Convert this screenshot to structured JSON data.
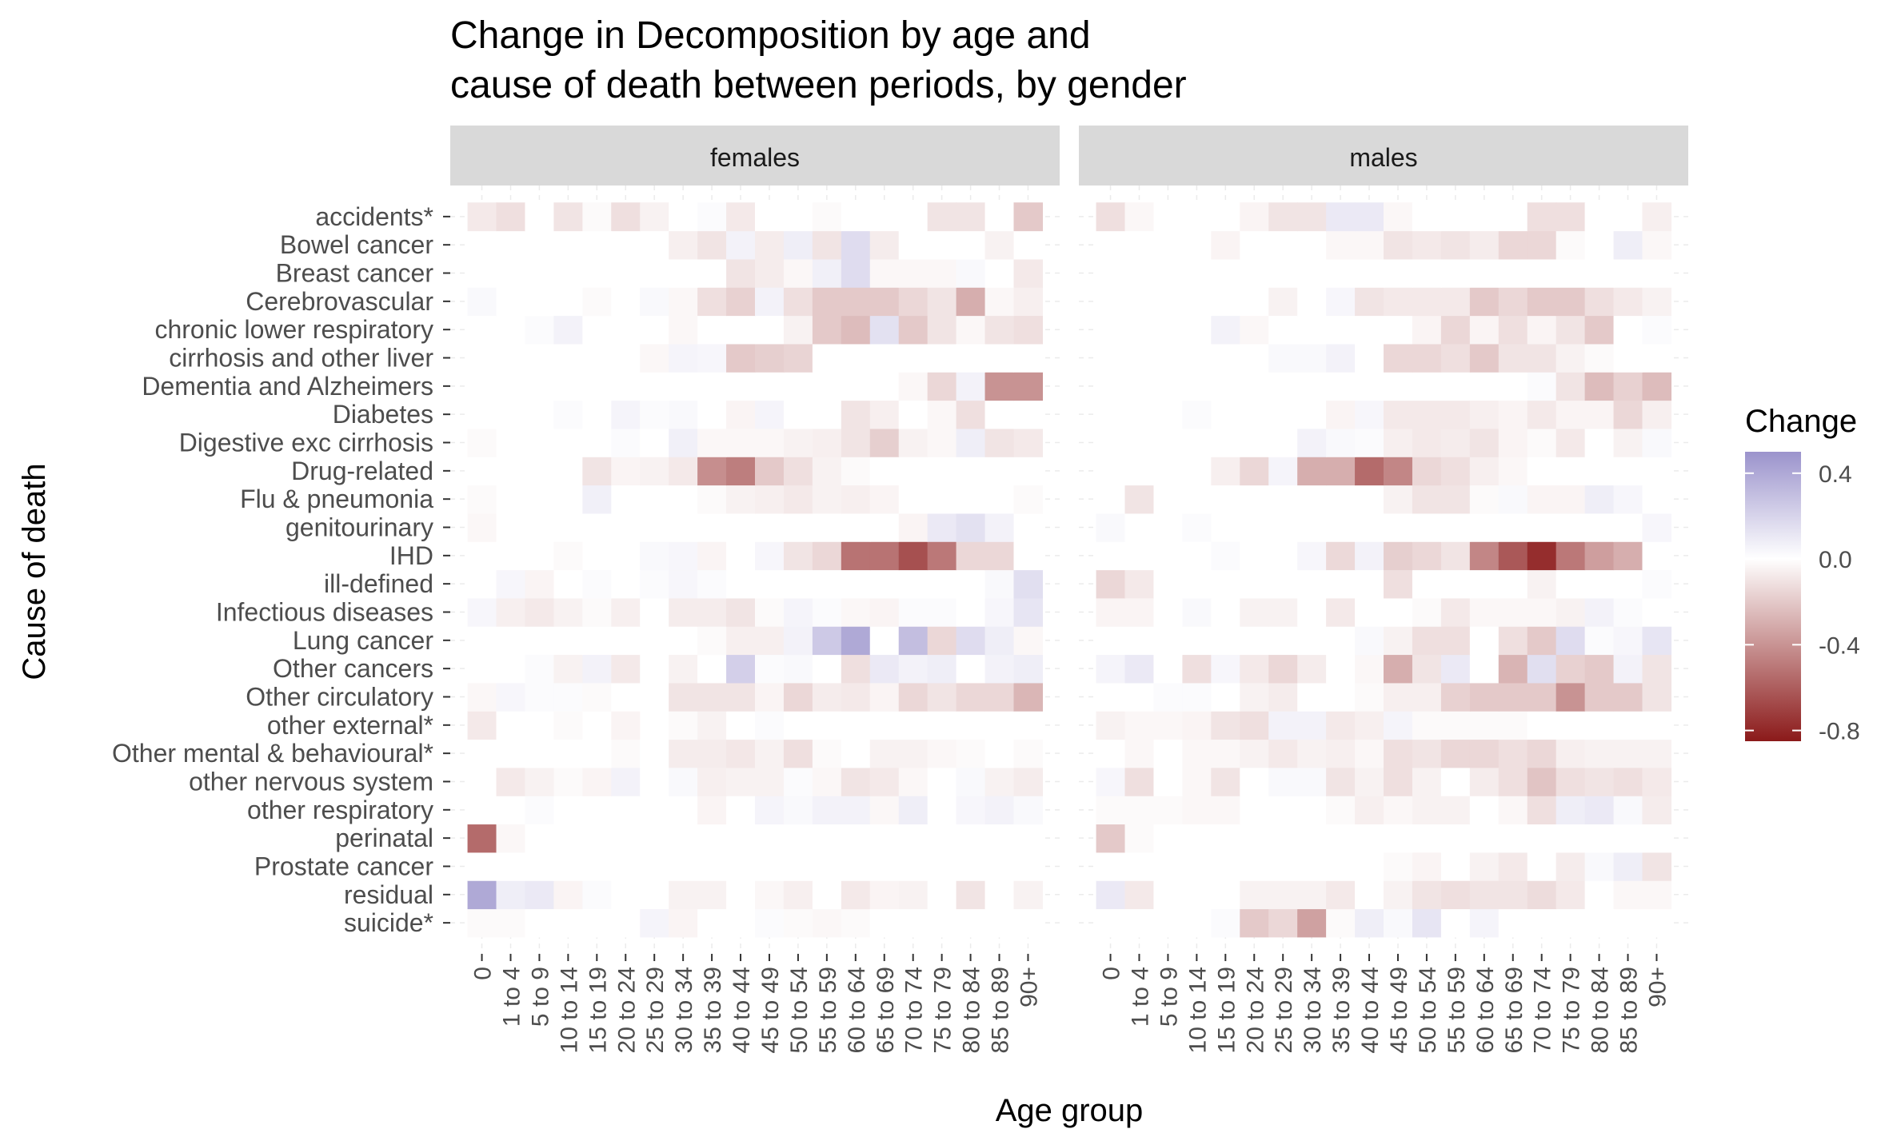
{
  "chart_data": {
    "type": "heatmap",
    "title": "Change in Decomposition by age and cause of death between periods, by gender",
    "title_lines": [
      "Change in Decomposition by age and",
      "cause of death between periods, by gender"
    ],
    "xlabel": "Age group",
    "ylabel": "Cause of death",
    "facets": [
      "females",
      "males"
    ],
    "x_categories": [
      "0",
      "1 to 4",
      "5 to 9",
      "10 to 14",
      "15 to 19",
      "20 to 24",
      "25 to 29",
      "30 to 34",
      "35 to 39",
      "40 to 44",
      "45 to 49",
      "50 to 54",
      "55 to 59",
      "60 to 64",
      "65 to 69",
      "70 to 74",
      "75 to 79",
      "80 to 84",
      "85 to 89",
      "90+"
    ],
    "y_categories": [
      "suicide*",
      "residual",
      "Prostate cancer",
      "perinatal",
      "other respiratory",
      "other nervous system",
      "Other mental & behavioural*",
      "other external*",
      "Other circulatory",
      "Other cancers",
      "Lung cancer",
      "Infectious diseases",
      "ill-defined",
      "IHD",
      "genitourinary",
      "Flu & pneumonia",
      "Drug-related",
      "Digestive exc cirrhosis",
      "Diabetes",
      "Dementia and Alzheimers",
      "cirrhosis and other liver",
      "chronic lower respiratory",
      "Cerebrovascular",
      "Breast cancer",
      "Bowel cancer",
      "accidents*"
    ],
    "legend": {
      "title": "Change",
      "breaks": [
        0.4,
        0.0,
        -0.4,
        -0.8
      ],
      "break_labels": [
        "0.4",
        "0.0",
        "-0.4",
        "-0.8"
      ],
      "limits": [
        -0.85,
        0.5
      ],
      "colors": {
        "high": "#9b93cc",
        "mid": "#ffffff",
        "low": "#8b1a1a"
      },
      "position": "right"
    },
    "values": {
      "females": [
        [
          -0.02,
          -0.02,
          0,
          0,
          0,
          0,
          0.05,
          -0.04,
          0,
          0,
          0.02,
          -0.02,
          -0.03,
          -0.02,
          0,
          0,
          0,
          0,
          0,
          0
        ],
        [
          0.4,
          0.08,
          0.1,
          -0.04,
          0.02,
          0,
          0,
          -0.05,
          -0.05,
          0,
          -0.03,
          -0.06,
          0,
          -0.08,
          -0.04,
          -0.05,
          0,
          -0.1,
          0,
          -0.05
        ],
        [
          0,
          0,
          0,
          0,
          0,
          0,
          0,
          0,
          0,
          0,
          0,
          0,
          0,
          0,
          0,
          0,
          0,
          0,
          0,
          0
        ],
        [
          -0.55,
          -0.03,
          0,
          0,
          0,
          0,
          0,
          0,
          0,
          0,
          0,
          0,
          0,
          0,
          0,
          0,
          0,
          0,
          0,
          0
        ],
        [
          0,
          0,
          0.02,
          0,
          0,
          0,
          0,
          0,
          -0.04,
          0,
          0.05,
          0.03,
          0.06,
          0.06,
          -0.03,
          0.08,
          0,
          0.04,
          0.06,
          0.03
        ],
        [
          0,
          -0.08,
          -0.05,
          -0.02,
          -0.04,
          0.06,
          0,
          0.03,
          -0.06,
          -0.05,
          -0.05,
          0.02,
          -0.03,
          -0.1,
          -0.08,
          -0.03,
          0,
          0.03,
          -0.05,
          -0.07
        ],
        [
          0,
          0,
          0,
          0,
          0,
          -0.02,
          0,
          -0.07,
          -0.07,
          -0.09,
          -0.05,
          -0.12,
          -0.02,
          0,
          -0.05,
          -0.05,
          -0.03,
          -0.02,
          0,
          -0.02
        ],
        [
          -0.08,
          0,
          0,
          -0.02,
          0,
          -0.04,
          0,
          -0.02,
          -0.05,
          0,
          0.02,
          0,
          0,
          0,
          0,
          0,
          0,
          0,
          0,
          0
        ],
        [
          -0.03,
          0.04,
          0.02,
          0.02,
          -0.02,
          0,
          0,
          -0.1,
          -0.1,
          -0.1,
          -0.04,
          -0.15,
          -0.07,
          -0.08,
          -0.04,
          -0.15,
          -0.1,
          -0.15,
          -0.15,
          -0.27
        ],
        [
          0,
          0,
          0.02,
          -0.05,
          0.06,
          -0.08,
          0,
          -0.05,
          0,
          0.22,
          0.02,
          0.03,
          0,
          -0.12,
          0.1,
          0.06,
          0.08,
          0,
          0.06,
          0.08
        ],
        [
          0,
          0,
          0,
          0,
          0,
          0,
          0,
          0,
          -0.02,
          -0.06,
          -0.06,
          0.06,
          0.25,
          0.4,
          0,
          0.3,
          -0.15,
          0.16,
          0.08,
          -0.03
        ],
        [
          0.04,
          -0.06,
          -0.08,
          -0.05,
          -0.02,
          -0.06,
          0,
          -0.07,
          -0.07,
          -0.1,
          -0.02,
          0.05,
          0.02,
          -0.03,
          -0.04,
          0.02,
          0.02,
          0,
          0.04,
          0.12
        ],
        [
          0,
          0.04,
          -0.04,
          0,
          0.02,
          0,
          0.02,
          0.04,
          0.02,
          0,
          0,
          0,
          0,
          0,
          0,
          0,
          0,
          0,
          0.03,
          0.15
        ],
        [
          0,
          0,
          0,
          -0.02,
          0,
          0,
          0.03,
          0.04,
          -0.04,
          0,
          0.04,
          -0.1,
          -0.15,
          -0.52,
          -0.52,
          -0.65,
          -0.5,
          -0.15,
          -0.15,
          0
        ],
        [
          -0.03,
          0,
          0,
          0,
          0,
          0,
          0,
          0,
          0,
          0,
          0,
          0,
          0,
          0,
          0,
          -0.04,
          0.1,
          0.14,
          0.06,
          0
        ],
        [
          -0.02,
          0,
          0,
          0,
          0.07,
          0,
          0,
          0,
          -0.02,
          -0.05,
          -0.06,
          -0.08,
          -0.05,
          -0.06,
          -0.04,
          0,
          0,
          0,
          0,
          -0.02
        ],
        [
          0,
          0,
          0,
          0,
          -0.1,
          -0.04,
          -0.05,
          -0.08,
          -0.42,
          -0.48,
          -0.2,
          -0.12,
          -0.05,
          -0.02,
          0,
          0,
          0,
          0,
          0,
          0
        ],
        [
          -0.02,
          0,
          0,
          0,
          0,
          0.02,
          0,
          0.07,
          -0.03,
          -0.03,
          -0.03,
          -0.05,
          -0.06,
          -0.1,
          -0.18,
          -0.05,
          -0.03,
          0.08,
          -0.1,
          -0.08
        ],
        [
          0,
          0,
          0,
          0.02,
          0,
          0.05,
          0.02,
          0.03,
          0,
          -0.04,
          0.05,
          0,
          0,
          -0.1,
          -0.06,
          0,
          -0.03,
          -0.12,
          0,
          0
        ],
        [
          0,
          0,
          0,
          0,
          0,
          0,
          0,
          0,
          0,
          0,
          0,
          0,
          0,
          0,
          0,
          -0.03,
          -0.15,
          0.06,
          -0.4,
          -0.4
        ],
        [
          0,
          0,
          0,
          0,
          0,
          0,
          -0.03,
          0.05,
          0.04,
          -0.2,
          -0.18,
          -0.16,
          0,
          0,
          0,
          0,
          0,
          0,
          0,
          0
        ],
        [
          0,
          0,
          0.02,
          0.06,
          0,
          0,
          0,
          -0.03,
          0,
          0,
          0,
          -0.05,
          -0.2,
          -0.25,
          0.14,
          -0.2,
          -0.1,
          -0.03,
          -0.1,
          -0.12
        ],
        [
          0.03,
          0,
          0,
          0,
          -0.02,
          0,
          0.03,
          -0.03,
          -0.12,
          -0.17,
          0.06,
          -0.12,
          -0.2,
          -0.2,
          -0.2,
          -0.15,
          -0.1,
          -0.3,
          -0.03,
          -0.06
        ],
        [
          0,
          0,
          0,
          0,
          0,
          0,
          0,
          0,
          0,
          -0.1,
          -0.07,
          -0.03,
          0.07,
          0.16,
          -0.03,
          -0.03,
          -0.03,
          0.03,
          0,
          -0.08
        ],
        [
          0,
          0,
          0,
          0,
          0,
          0,
          0,
          -0.06,
          -0.1,
          0.06,
          -0.07,
          0.08,
          -0.1,
          0.16,
          -0.07,
          0,
          0,
          0,
          -0.05,
          0
        ],
        [
          -0.08,
          -0.12,
          0,
          -0.1,
          -0.02,
          -0.12,
          -0.05,
          0,
          0.02,
          -0.08,
          0,
          0,
          -0.02,
          0,
          0,
          0,
          -0.1,
          -0.1,
          0,
          -0.2
        ]
      ],
      "males": [
        [
          0,
          0,
          0,
          0,
          0.02,
          -0.2,
          -0.15,
          -0.35,
          -0.02,
          0.08,
          0.03,
          0.12,
          0,
          0.05,
          0,
          0,
          0,
          0,
          0,
          0
        ],
        [
          0.1,
          -0.08,
          0,
          0,
          0,
          -0.05,
          -0.05,
          -0.05,
          -0.08,
          0,
          -0.05,
          -0.1,
          -0.12,
          -0.1,
          -0.1,
          -0.13,
          -0.08,
          0,
          -0.03,
          -0.03
        ],
        [
          0,
          0,
          0,
          0,
          0,
          0,
          0,
          0,
          0,
          0,
          -0.02,
          -0.04,
          0,
          -0.05,
          -0.08,
          0,
          -0.07,
          0.03,
          0.08,
          -0.1
        ],
        [
          -0.2,
          -0.02,
          0,
          0,
          0,
          0,
          0,
          0,
          0,
          0,
          0,
          0,
          0,
          0,
          0,
          0,
          0,
          0,
          0,
          0
        ],
        [
          -0.02,
          -0.02,
          -0.02,
          -0.03,
          -0.03,
          0,
          0,
          0,
          -0.02,
          -0.06,
          -0.03,
          -0.05,
          -0.05,
          0,
          -0.03,
          -0.12,
          0.08,
          0.1,
          0.03,
          -0.07
        ],
        [
          0.04,
          -0.12,
          0,
          -0.03,
          -0.1,
          0,
          0.03,
          0.03,
          -0.1,
          -0.05,
          -0.12,
          -0.05,
          0,
          -0.07,
          -0.12,
          -0.22,
          -0.12,
          -0.1,
          -0.12,
          -0.08
        ],
        [
          0,
          -0.03,
          0,
          -0.03,
          -0.03,
          -0.05,
          -0.08,
          -0.05,
          -0.06,
          -0.03,
          -0.12,
          -0.1,
          -0.15,
          -0.15,
          -0.12,
          -0.15,
          -0.06,
          -0.05,
          -0.05,
          -0.05
        ],
        [
          -0.05,
          -0.03,
          -0.03,
          -0.04,
          -0.1,
          -0.12,
          0.06,
          0.06,
          -0.08,
          -0.06,
          0.05,
          -0.02,
          -0.02,
          -0.02,
          -0.02,
          0,
          0,
          0,
          0,
          0
        ],
        [
          0,
          0,
          0.02,
          0.02,
          0,
          -0.05,
          -0.07,
          0,
          0,
          -0.02,
          -0.06,
          -0.06,
          -0.17,
          -0.2,
          -0.2,
          -0.2,
          -0.4,
          -0.2,
          -0.2,
          -0.1
        ],
        [
          0.05,
          0.1,
          0,
          -0.12,
          0.04,
          -0.08,
          -0.15,
          -0.07,
          0,
          -0.03,
          -0.3,
          -0.1,
          0.1,
          0,
          -0.28,
          0.15,
          -0.17,
          -0.2,
          0.06,
          -0.1
        ],
        [
          0,
          0,
          0,
          0,
          0,
          0,
          0,
          0,
          0,
          0.03,
          -0.05,
          -0.12,
          -0.12,
          0,
          -0.12,
          -0.2,
          0.16,
          0.02,
          0.04,
          0.12
        ],
        [
          -0.04,
          -0.04,
          0,
          0.03,
          0,
          -0.05,
          -0.05,
          0,
          -0.08,
          0,
          0,
          -0.02,
          -0.08,
          -0.03,
          -0.03,
          -0.03,
          -0.05,
          0.06,
          0.02,
          0
        ],
        [
          -0.15,
          -0.08,
          0,
          0,
          0,
          0,
          0,
          0,
          0,
          0,
          -0.12,
          0,
          0,
          0,
          0,
          -0.05,
          0,
          0,
          0,
          0.02
        ],
        [
          0,
          0,
          0,
          0,
          0.02,
          0,
          0,
          0.04,
          -0.14,
          0.06,
          -0.18,
          -0.15,
          -0.1,
          -0.45,
          -0.62,
          -0.78,
          -0.5,
          -0.36,
          -0.3,
          0
        ],
        [
          0.03,
          0,
          0,
          0.02,
          0,
          0,
          0,
          0,
          0,
          0,
          0,
          0,
          0,
          0,
          0,
          0,
          0,
          0,
          0,
          0.04
        ],
        [
          0,
          -0.1,
          0,
          0,
          0,
          0,
          0,
          0,
          0,
          0,
          -0.05,
          -0.1,
          -0.1,
          -0.02,
          0.03,
          -0.04,
          -0.04,
          0.08,
          0.04,
          0
        ],
        [
          0,
          0,
          0,
          0,
          -0.06,
          -0.15,
          0.05,
          -0.3,
          -0.3,
          -0.55,
          -0.45,
          -0.15,
          -0.12,
          -0.06,
          -0.03,
          0,
          0,
          0,
          0,
          0
        ],
        [
          0,
          0,
          0,
          0,
          0,
          0,
          0,
          0.06,
          0.03,
          0.02,
          -0.06,
          -0.08,
          -0.07,
          -0.1,
          -0.04,
          -0.02,
          -0.08,
          0,
          -0.05,
          0.03
        ],
        [
          0,
          0,
          0,
          0.02,
          0,
          0,
          0,
          0,
          -0.04,
          0.04,
          -0.08,
          -0.08,
          -0.08,
          -0.06,
          -0.04,
          -0.08,
          -0.04,
          -0.04,
          -0.15,
          -0.06
        ],
        [
          0,
          0,
          0,
          0,
          0,
          0,
          0,
          0,
          0,
          0,
          0,
          0,
          0,
          0,
          0,
          0.02,
          -0.1,
          -0.25,
          -0.17,
          -0.25
        ],
        [
          0,
          0,
          0,
          0,
          0,
          0,
          0.03,
          0.03,
          0.06,
          0,
          -0.15,
          -0.15,
          -0.12,
          -0.2,
          -0.1,
          -0.1,
          -0.05,
          -0.02,
          0,
          0
        ],
        [
          0,
          0,
          0,
          0,
          0.06,
          -0.03,
          0,
          0,
          0,
          0,
          0,
          -0.04,
          -0.15,
          -0.04,
          -0.12,
          -0.04,
          -0.1,
          -0.2,
          0,
          0.02
        ],
        [
          0,
          0,
          0,
          0,
          0,
          0,
          -0.05,
          0,
          0.04,
          -0.1,
          -0.08,
          -0.08,
          -0.08,
          -0.2,
          -0.15,
          -0.2,
          -0.2,
          -0.12,
          -0.08,
          -0.05
        ],
        [
          0,
          0,
          0,
          0,
          0,
          0,
          0,
          0,
          0,
          0,
          0,
          0,
          0,
          0,
          0,
          0,
          0,
          0,
          0,
          0
        ],
        [
          0,
          0,
          0,
          0,
          -0.04,
          0,
          0,
          0,
          -0.03,
          -0.03,
          -0.1,
          -0.08,
          -0.1,
          -0.07,
          -0.15,
          -0.15,
          -0.02,
          0,
          0.08,
          -0.03
        ],
        [
          -0.12,
          -0.03,
          0,
          0,
          0,
          -0.04,
          -0.1,
          -0.1,
          0.1,
          0.1,
          -0.03,
          0,
          0,
          0,
          0,
          -0.12,
          -0.12,
          0,
          0,
          -0.06
        ]
      ]
    }
  }
}
